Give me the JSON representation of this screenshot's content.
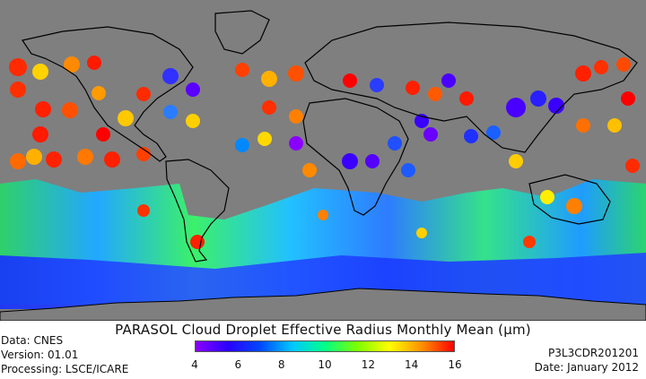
{
  "map": {
    "ocean_background": "#7f7f7f",
    "land_background": "#7f7f7f",
    "coastline_color": "#000000",
    "nodata_color": "#7f7f7f"
  },
  "title": "PARASOL Cloud Droplet Effective Radius Monthly Mean (µm)",
  "meta_left": {
    "data": "Data: CNES",
    "version": "Version: 01.01",
    "processing": "Processing: LSCE/ICARE"
  },
  "meta_right": {
    "product": "P3L3CDR201201",
    "date": "Date: January 2012"
  },
  "colorbar": {
    "min": 4,
    "max": 16,
    "ticks": [
      "4",
      "6",
      "8",
      "10",
      "12",
      "14",
      "16"
    ],
    "colors": [
      "#8a00ff",
      "#2a00ff",
      "#0048ff",
      "#00c8ff",
      "#00ff88",
      "#7cff00",
      "#ffff00",
      "#ff9000",
      "#ff0000"
    ]
  }
}
